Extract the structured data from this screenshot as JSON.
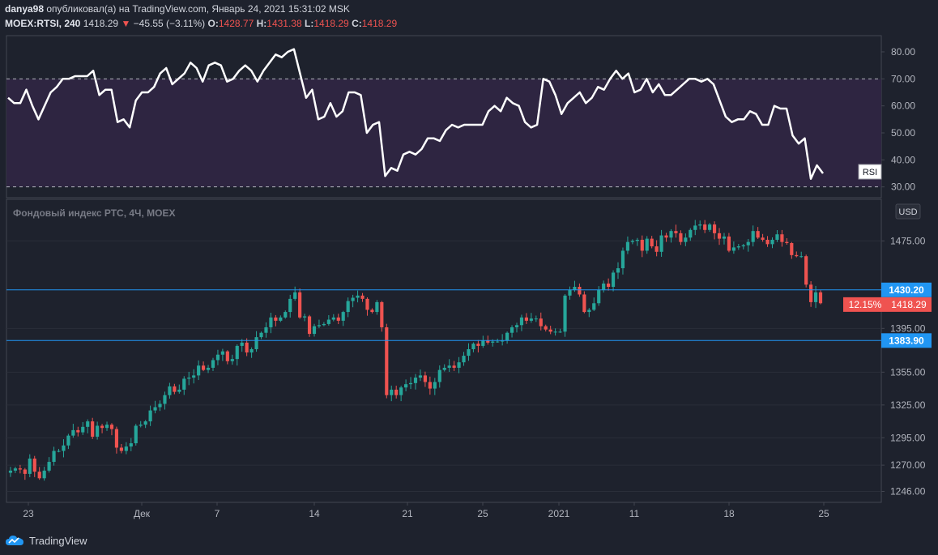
{
  "header": {
    "author": "danya98",
    "published": "опубликовал(а) на TradingView.com, Январь 24, 2021 15:31:02 MSK",
    "symbol": "MOEX:RTSI, 240",
    "last": "1418.29",
    "change_arrow": "▼",
    "change": "−45.55 (−3.11%)",
    "o_label": "O:",
    "o": "1428.77",
    "h_label": "H:",
    "h": "1431.38",
    "l_label": "L:",
    "l": "1418.29",
    "c_label": "C:",
    "c": "1418.29"
  },
  "rsi_panel": {
    "label": "RSI",
    "ticks": [
      "80.00",
      "70.00",
      "60.00",
      "50.00",
      "40.00",
      "30.00"
    ],
    "tick_values": [
      80,
      70,
      60,
      50,
      40,
      30
    ],
    "range": [
      26,
      86
    ],
    "band": [
      30,
      70
    ],
    "values": [
      63,
      61,
      61,
      66,
      60,
      55,
      60,
      65,
      67,
      70,
      70,
      71,
      71,
      71,
      73,
      64,
      66,
      66,
      54,
      55,
      52,
      62,
      65,
      65,
      67,
      72,
      74,
      68,
      70,
      72,
      76,
      74,
      69,
      75,
      76,
      75,
      69,
      70,
      73,
      75,
      73,
      69,
      73,
      76,
      79,
      78,
      80,
      81,
      72,
      63,
      66,
      55,
      56,
      61,
      56,
      58,
      65,
      65,
      64,
      50,
      53,
      54,
      34,
      37,
      36,
      42,
      43,
      42,
      44,
      48,
      48,
      47,
      51,
      53,
      52,
      53,
      53,
      53,
      53,
      58,
      60,
      58,
      63,
      61,
      60,
      54,
      52,
      53,
      70,
      69,
      64,
      57,
      61,
      63,
      65,
      61,
      63,
      67,
      66,
      70,
      73,
      70,
      72,
      65,
      66,
      70,
      65,
      68,
      64,
      64,
      66,
      68,
      70,
      70,
      69,
      70,
      68,
      62,
      56,
      54,
      55,
      55,
      58,
      57,
      53,
      53,
      60,
      59,
      59,
      49,
      46,
      48,
      33,
      38,
      35
    ]
  },
  "price_panel": {
    "title": "Фондовый индекс РТС, 4Ч, MOEX",
    "currency": "USD",
    "ticks": [
      "1475.00",
      "1395.00",
      "1355.00",
      "1325.00",
      "1295.00",
      "1270.00",
      "1246.00"
    ],
    "tick_values": [
      1475,
      1395,
      1355,
      1325,
      1295,
      1270,
      1246
    ],
    "range": [
      1236,
      1513
    ],
    "hlines": [
      1430.2,
      1383.9
    ],
    "hline_labels": [
      "1430.20",
      "1383.90"
    ],
    "last_price": 1418.29,
    "last_label": "1418.29",
    "pct_label": "12.15%",
    "closes": [
      1265,
      1267,
      1266,
      1262,
      1276,
      1264,
      1258,
      1265,
      1273,
      1283,
      1283,
      1288,
      1297,
      1302,
      1300,
      1305,
      1310,
      1296,
      1306,
      1304,
      1307,
      1303,
      1286,
      1283,
      1287,
      1290,
      1306,
      1307,
      1310,
      1320,
      1323,
      1326,
      1334,
      1342,
      1337,
      1339,
      1349,
      1350,
      1352,
      1361,
      1357,
      1359,
      1366,
      1371,
      1374,
      1365,
      1367,
      1379,
      1382,
      1373,
      1376,
      1387,
      1391,
      1396,
      1405,
      1402,
      1405,
      1410,
      1422,
      1428,
      1405,
      1406,
      1390,
      1397,
      1398,
      1399,
      1403,
      1405,
      1402,
      1410,
      1420,
      1423,
      1425,
      1422,
      1412,
      1410,
      1419,
      1396,
      1334,
      1339,
      1334,
      1341,
      1344,
      1345,
      1350,
      1352,
      1346,
      1340,
      1346,
      1357,
      1359,
      1361,
      1359,
      1364,
      1370,
      1376,
      1381,
      1379,
      1384,
      1382,
      1383,
      1383,
      1384,
      1391,
      1396,
      1398,
      1405,
      1402,
      1404,
      1404,
      1397,
      1394,
      1392,
      1392,
      1392,
      1425,
      1430,
      1433,
      1426,
      1410,
      1412,
      1418,
      1430,
      1436,
      1433,
      1446,
      1450,
      1466,
      1474,
      1475,
      1476,
      1466,
      1477,
      1470,
      1465,
      1480,
      1478,
      1484,
      1482,
      1474,
      1478,
      1485,
      1489,
      1490,
      1485,
      1490,
      1482,
      1477,
      1479,
      1466,
      1469,
      1470,
      1471,
      1474,
      1484,
      1478,
      1476,
      1472,
      1476,
      1481,
      1474,
      1473,
      1462,
      1461,
      1461,
      1435,
      1419,
      1428,
      1418
    ]
  },
  "x_axis": {
    "labels": [
      "23",
      "Дек",
      "7",
      "14",
      "21",
      "25",
      "2021",
      "11",
      "18",
      "25"
    ]
  },
  "footer": {
    "brand": "TradingView"
  },
  "colors": {
    "bg": "#1e222d",
    "grid": "#2a2e39",
    "rsi_band": "#2e2541",
    "rsi_line": "#ffffff",
    "up": "#26a69a",
    "down": "#ef5350",
    "hline": "#2196f3",
    "axis_text": "#b2b5be"
  }
}
